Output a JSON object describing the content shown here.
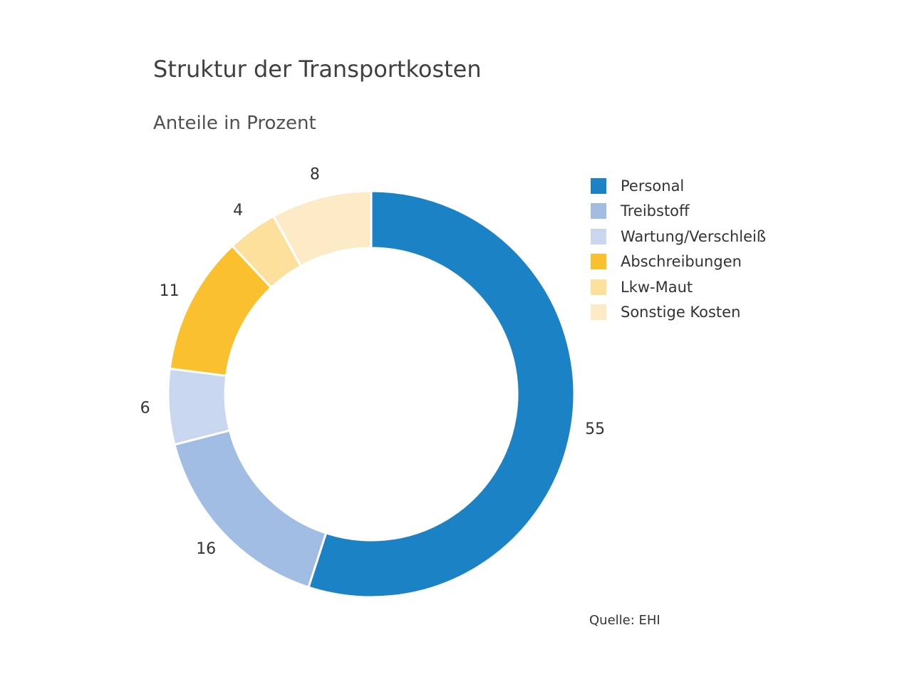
{
  "chart_data": {
    "type": "pie",
    "variant": "donut",
    "title": "Struktur der Transportkosten",
    "subtitle": "Anteile in Prozent",
    "categories": [
      "Personal",
      "Treibstoff",
      "Wartung/Verschleiß",
      "Abschreibungen",
      "Lkw-Maut",
      "Sonstige Kosten"
    ],
    "values": [
      55,
      16,
      6,
      11,
      4,
      8
    ],
    "colors": [
      "#1c82c6",
      "#a1bde3",
      "#c8d6ef",
      "#fbc02d",
      "#fde09c",
      "#fdebc8"
    ],
    "legend_position": "right",
    "data_labels": [
      "55",
      "16",
      "6",
      "11",
      "4",
      "8"
    ],
    "source": "Quelle: EHI"
  }
}
